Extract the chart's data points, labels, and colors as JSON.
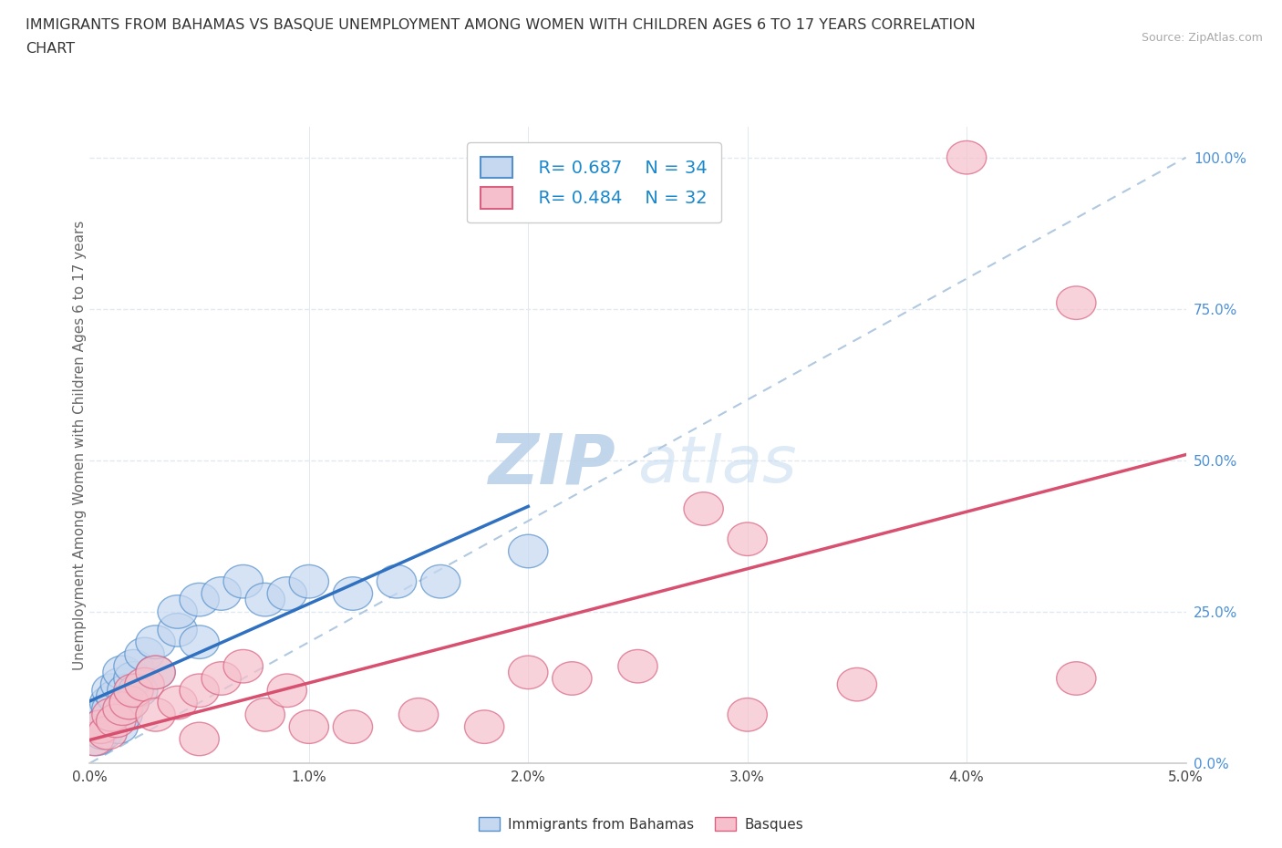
{
  "title_line1": "IMMIGRANTS FROM BAHAMAS VS BASQUE UNEMPLOYMENT AMONG WOMEN WITH CHILDREN AGES 6 TO 17 YEARS CORRELATION",
  "title_line2": "CHART",
  "source": "Source: ZipAtlas.com",
  "ylabel": "Unemployment Among Women with Children Ages 6 to 17 years",
  "xlim": [
    0.0,
    0.05
  ],
  "ylim": [
    0.0,
    1.05
  ],
  "xticks": [
    0.0,
    0.01,
    0.02,
    0.03,
    0.04,
    0.05
  ],
  "xticklabels": [
    "0.0%",
    "1.0%",
    "2.0%",
    "3.0%",
    "4.0%",
    "5.0%"
  ],
  "yticks": [
    0.0,
    0.25,
    0.5,
    0.75,
    1.0
  ],
  "yticklabels": [
    "0.0%",
    "25.0%",
    "50.0%",
    "75.0%",
    "100.0%"
  ],
  "legend_labels": [
    "Immigrants from Bahamas",
    "Basques"
  ],
  "legend_r_blue": "R= 0.687",
  "legend_n_blue": "N = 34",
  "legend_r_pink": "R= 0.484",
  "legend_n_pink": "N = 32",
  "blue_face": "#c5d8f0",
  "blue_edge": "#5590cc",
  "pink_face": "#f5c0cc",
  "pink_edge": "#d86080",
  "blue_line": "#3070c0",
  "pink_line": "#d85070",
  "dashed_line": "#b0c8e0",
  "watermark_zip_color": "#b8cfe8",
  "watermark_atlas_color": "#c8ddf0",
  "bg_color": "#ffffff",
  "grid_color": "#e0e8f0",
  "ytick_color": "#4a90d9",
  "blue_scatter_x": [
    0.0003,
    0.0005,
    0.0006,
    0.0007,
    0.0008,
    0.0009,
    0.001,
    0.001,
    0.0012,
    0.0013,
    0.0014,
    0.0015,
    0.0015,
    0.0017,
    0.0018,
    0.002,
    0.002,
    0.0022,
    0.0025,
    0.003,
    0.003,
    0.004,
    0.004,
    0.005,
    0.005,
    0.006,
    0.007,
    0.008,
    0.009,
    0.01,
    0.012,
    0.014,
    0.016,
    0.02
  ],
  "blue_scatter_y": [
    0.04,
    0.06,
    0.05,
    0.08,
    0.07,
    0.1,
    0.09,
    0.12,
    0.11,
    0.06,
    0.13,
    0.08,
    0.15,
    0.12,
    0.1,
    0.14,
    0.16,
    0.12,
    0.18,
    0.15,
    0.2,
    0.22,
    0.25,
    0.2,
    0.27,
    0.28,
    0.3,
    0.27,
    0.28,
    0.3,
    0.28,
    0.3,
    0.3,
    0.35
  ],
  "pink_scatter_x": [
    0.0002,
    0.0005,
    0.0008,
    0.001,
    0.0012,
    0.0015,
    0.0018,
    0.002,
    0.0025,
    0.003,
    0.003,
    0.004,
    0.005,
    0.005,
    0.006,
    0.007,
    0.008,
    0.009,
    0.01,
    0.012,
    0.015,
    0.018,
    0.02,
    0.022,
    0.025,
    0.028,
    0.03,
    0.03,
    0.035,
    0.04,
    0.045,
    0.045
  ],
  "pink_scatter_y": [
    0.04,
    0.06,
    0.05,
    0.08,
    0.07,
    0.09,
    0.1,
    0.12,
    0.13,
    0.08,
    0.15,
    0.1,
    0.12,
    0.04,
    0.14,
    0.16,
    0.08,
    0.12,
    0.06,
    0.06,
    0.08,
    0.06,
    0.15,
    0.14,
    0.16,
    0.42,
    0.37,
    0.08,
    0.13,
    1.0,
    0.14,
    0.76
  ]
}
